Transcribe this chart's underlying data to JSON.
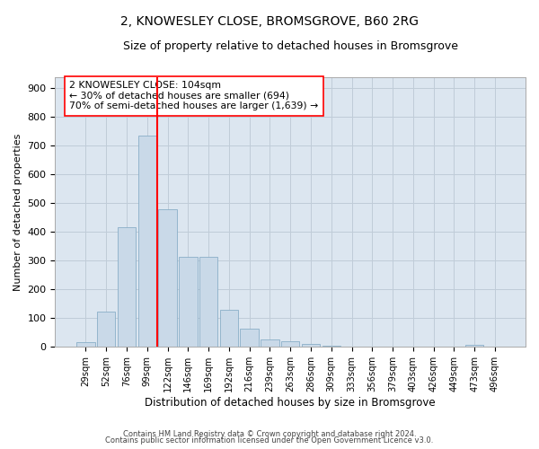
{
  "title": "2, KNOWESLEY CLOSE, BROMSGROVE, B60 2RG",
  "subtitle": "Size of property relative to detached houses in Bromsgrove",
  "xlabel": "Distribution of detached houses by size in Bromsgrove",
  "ylabel": "Number of detached properties",
  "footer_line1": "Contains HM Land Registry data © Crown copyright and database right 2024.",
  "footer_line2": "Contains public sector information licensed under the Open Government Licence v3.0.",
  "bar_labels": [
    "29sqm",
    "52sqm",
    "76sqm",
    "99sqm",
    "122sqm",
    "146sqm",
    "169sqm",
    "192sqm",
    "216sqm",
    "239sqm",
    "263sqm",
    "286sqm",
    "309sqm",
    "333sqm",
    "356sqm",
    "379sqm",
    "403sqm",
    "426sqm",
    "449sqm",
    "473sqm",
    "496sqm"
  ],
  "bar_values": [
    18,
    122,
    418,
    735,
    478,
    315,
    315,
    130,
    65,
    25,
    20,
    10,
    5,
    2,
    2,
    2,
    2,
    0,
    0,
    8,
    0
  ],
  "bar_color": "#c9d9e8",
  "bar_edge_color": "#8aaec8",
  "vline_x": 3.5,
  "vline_color": "red",
  "vline_linewidth": 1.5,
  "annotation_text": "2 KNOWESLEY CLOSE: 104sqm\n← 30% of detached houses are smaller (694)\n70% of semi-detached houses are larger (1,639) →",
  "annotation_box_color": "white",
  "annotation_box_edge": "red",
  "ylim": [
    0,
    940
  ],
  "yticks": [
    0,
    100,
    200,
    300,
    400,
    500,
    600,
    700,
    800,
    900
  ],
  "grid_color": "#c0ccd8",
  "bg_color": "#dce6f0",
  "title_fontsize": 10,
  "subtitle_fontsize": 9
}
